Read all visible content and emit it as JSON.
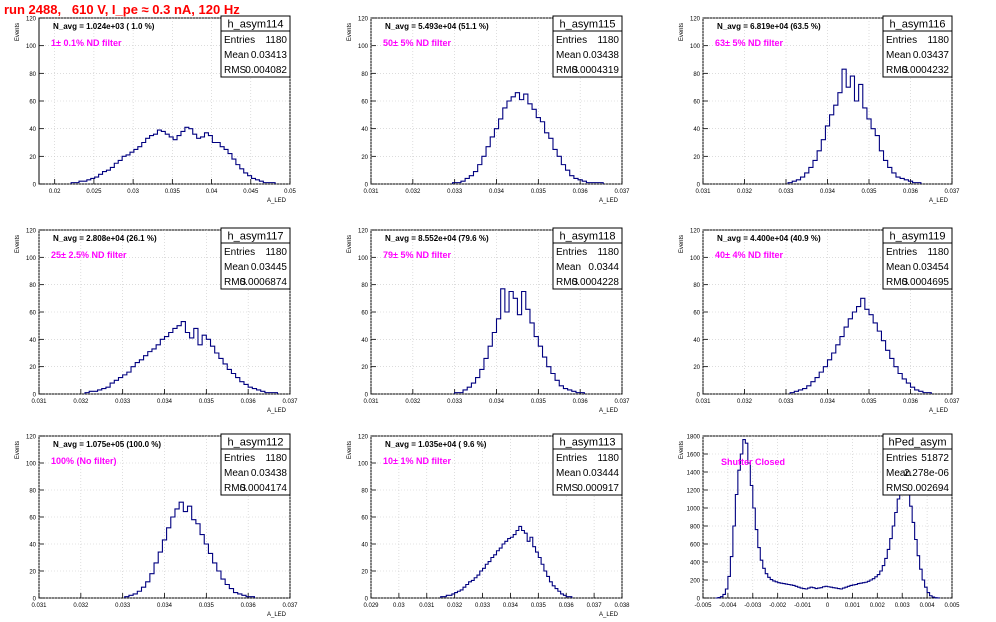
{
  "page_title": "run 2488,   610 V, I_pe ≈ 0.3 nA, 120 Hz",
  "chart_data": [
    {
      "type": "histogram",
      "name": "h_asym114",
      "annotation": "N_avg = 1.024e+03 ( 1.0 %)",
      "filter_label": "1± 0.1% ND filter",
      "stats": {
        "entries": "1180",
        "mean": "0.03413",
        "rms": "0.004082"
      },
      "ylabel": "Events",
      "xlabel": "A_LED",
      "xlim": [
        0.018,
        0.05
      ],
      "ylim": [
        0,
        120
      ],
      "xticks": [
        0.02,
        0.025,
        0.03,
        0.035,
        0.04,
        0.045,
        0.05
      ],
      "xtick_labels": [
        "0.02",
        "0.025",
        "0.03",
        "0.035",
        "0.04",
        "0.045",
        "0.05"
      ],
      "yticks": [
        0,
        20,
        40,
        60,
        80,
        100,
        120
      ],
      "bin_start": 0.0221,
      "bin_width": 0.0005,
      "counts": [
        1,
        1,
        2,
        2,
        3,
        4,
        5,
        7,
        9,
        10,
        12,
        15,
        17,
        20,
        21,
        23,
        25,
        27,
        30,
        33,
        35,
        36,
        39,
        38,
        36,
        34,
        32,
        35,
        38,
        41,
        40,
        36,
        33,
        34,
        37,
        35,
        30,
        30,
        27,
        25,
        22,
        18,
        14,
        11,
        8,
        6,
        4,
        3,
        2,
        1,
        1,
        1
      ]
    },
    {
      "type": "histogram",
      "name": "h_asym115",
      "annotation": "N_avg = 5.493e+04 (51.1 %)",
      "filter_label": "50± 5% ND filter",
      "stats": {
        "entries": "1180",
        "mean": "0.03438",
        "rms": "0.0004319"
      },
      "ylabel": "Events",
      "xlabel": "A_LED",
      "xlim": [
        0.031,
        0.037
      ],
      "ylim": [
        0,
        120
      ],
      "xticks": [
        0.031,
        0.032,
        0.033,
        0.034,
        0.035,
        0.036,
        0.037
      ],
      "xtick_labels": [
        "0.031",
        "0.032",
        "0.033",
        "0.034",
        "0.035",
        "0.036",
        "0.037"
      ],
      "yticks": [
        0,
        20,
        40,
        60,
        80,
        100,
        120
      ],
      "bin_start": 0.03295,
      "bin_width": 0.0001,
      "counts": [
        1,
        1,
        2,
        4,
        6,
        9,
        14,
        20,
        27,
        34,
        40,
        47,
        55,
        60,
        63,
        66,
        61,
        65,
        58,
        54,
        48,
        45,
        37,
        33,
        25,
        20,
        14,
        10,
        6,
        4,
        3,
        2,
        1,
        1,
        1,
        1
      ]
    },
    {
      "type": "histogram",
      "name": "h_asym116",
      "annotation": "N_avg = 6.819e+04 (63.5 %)",
      "filter_label": "63± 5% ND filter",
      "stats": {
        "entries": "1180",
        "mean": "0.03437",
        "rms": "0.0004232"
      },
      "ylabel": "Events",
      "xlabel": "A_LED",
      "xlim": [
        0.031,
        0.037
      ],
      "ylim": [
        0,
        120
      ],
      "xticks": [
        0.031,
        0.032,
        0.033,
        0.034,
        0.035,
        0.036,
        0.037
      ],
      "xtick_labels": [
        "0.031",
        "0.032",
        "0.033",
        "0.034",
        "0.035",
        "0.036",
        "0.037"
      ],
      "yticks": [
        0,
        20,
        40,
        60,
        80,
        100,
        120
      ],
      "bin_start": 0.03305,
      "bin_width": 0.0001,
      "counts": [
        1,
        2,
        3,
        5,
        8,
        12,
        17,
        24,
        32,
        42,
        50,
        57,
        66,
        83,
        70,
        78,
        60,
        72,
        55,
        47,
        40,
        35,
        24,
        17,
        12,
        8,
        5,
        4,
        3,
        2,
        1,
        1
      ]
    },
    {
      "type": "histogram",
      "name": "h_asym117",
      "annotation": "N_avg = 2.808e+04 (26.1 %)",
      "filter_label": "25± 2.5% ND filter",
      "stats": {
        "entries": "1180",
        "mean": "0.03445",
        "rms": "0.0006874"
      },
      "ylabel": "Events",
      "xlabel": "A_LED",
      "xlim": [
        0.031,
        0.037
      ],
      "ylim": [
        0,
        120
      ],
      "xticks": [
        0.031,
        0.032,
        0.033,
        0.034,
        0.035,
        0.036,
        0.037
      ],
      "xtick_labels": [
        "0.031",
        "0.032",
        "0.033",
        "0.034",
        "0.035",
        "0.036",
        "0.037"
      ],
      "yticks": [
        0,
        20,
        40,
        60,
        80,
        100,
        120
      ],
      "bin_start": 0.0321,
      "bin_width": 0.0001,
      "counts": [
        1,
        2,
        2,
        3,
        4,
        5,
        8,
        10,
        12,
        14,
        16,
        20,
        23,
        25,
        28,
        31,
        33,
        36,
        40,
        42,
        45,
        48,
        50,
        53,
        45,
        41,
        48,
        36,
        43,
        40,
        35,
        30,
        26,
        22,
        18,
        15,
        12,
        9,
        7,
        5,
        4,
        3,
        2,
        1,
        1,
        1
      ]
    },
    {
      "type": "histogram",
      "name": "h_asym118",
      "annotation": "N_avg = 8.552e+04 (79.6 %)",
      "filter_label": "79± 5% ND filter",
      "stats": {
        "entries": "1180",
        "mean": "0.0344",
        "rms": "0.0004228"
      },
      "ylabel": "Events",
      "xlabel": "A_LED",
      "xlim": [
        0.031,
        0.037
      ],
      "ylim": [
        0,
        120
      ],
      "xticks": [
        0.031,
        0.032,
        0.033,
        0.034,
        0.035,
        0.036,
        0.037
      ],
      "xtick_labels": [
        "0.031",
        "0.032",
        "0.033",
        "0.034",
        "0.035",
        "0.036",
        "0.037"
      ],
      "yticks": [
        0,
        20,
        40,
        60,
        80,
        100,
        120
      ],
      "bin_start": 0.033,
      "bin_width": 0.0001,
      "counts": [
        1,
        1,
        3,
        5,
        8,
        12,
        18,
        26,
        35,
        45,
        55,
        77,
        60,
        75,
        70,
        58,
        75,
        62,
        52,
        42,
        35,
        27,
        20,
        15,
        10,
        6,
        4,
        3,
        2,
        1,
        1
      ]
    },
    {
      "type": "histogram",
      "name": "h_asym119",
      "annotation": "N_avg = 4.400e+04 (40.9 %)",
      "filter_label": "40± 4% ND filter",
      "stats": {
        "entries": "1180",
        "mean": "0.03454",
        "rms": "0.0004695"
      },
      "ylabel": "Events",
      "xlabel": "A_LED",
      "xlim": [
        0.031,
        0.037
      ],
      "ylim": [
        0,
        120
      ],
      "xticks": [
        0.031,
        0.032,
        0.033,
        0.034,
        0.035,
        0.036,
        0.037
      ],
      "xtick_labels": [
        "0.031",
        "0.032",
        "0.033",
        "0.034",
        "0.035",
        "0.036",
        "0.037"
      ],
      "yticks": [
        0,
        20,
        40,
        60,
        80,
        100,
        120
      ],
      "bin_start": 0.0331,
      "bin_width": 0.0001,
      "counts": [
        1,
        2,
        3,
        4,
        6,
        9,
        12,
        16,
        20,
        25,
        30,
        36,
        42,
        49,
        55,
        60,
        64,
        70,
        62,
        58,
        52,
        46,
        39,
        32,
        26,
        20,
        15,
        11,
        8,
        5,
        3,
        2,
        1,
        1
      ]
    },
    {
      "type": "histogram",
      "name": "h_asym112",
      "annotation": "N_avg = 1.075e+05 (100.0 %)",
      "filter_label": "100% (No filter)",
      "stats": {
        "entries": "1180",
        "mean": "0.03438",
        "rms": "0.0004174"
      },
      "ylabel": "Events",
      "xlabel": "A_LED",
      "xlim": [
        0.031,
        0.037
      ],
      "ylim": [
        0,
        120
      ],
      "xticks": [
        0.031,
        0.032,
        0.033,
        0.034,
        0.035,
        0.036,
        0.037
      ],
      "xtick_labels": [
        "0.031",
        "0.032",
        "0.033",
        "0.034",
        "0.035",
        "0.036",
        "0.037"
      ],
      "yticks": [
        0,
        20,
        40,
        60,
        80,
        100,
        120
      ],
      "bin_start": 0.03305,
      "bin_width": 0.0001,
      "counts": [
        1,
        2,
        3,
        5,
        8,
        12,
        18,
        26,
        34,
        43,
        52,
        60,
        66,
        71,
        64,
        68,
        58,
        55,
        47,
        40,
        33,
        26,
        20,
        14,
        10,
        7,
        4,
        3,
        2,
        1,
        1
      ]
    },
    {
      "type": "histogram",
      "name": "h_asym113",
      "annotation": "N_avg = 1.035e+04 ( 9.6 %)",
      "filter_label": "10± 1% ND filter",
      "stats": {
        "entries": "1180",
        "mean": "0.03444",
        "rms": "0.000917"
      },
      "ylabel": "Events",
      "xlabel": "A_LED",
      "xlim": [
        0.029,
        0.038
      ],
      "ylim": [
        0,
        120
      ],
      "xticks": [
        0.029,
        0.03,
        0.031,
        0.032,
        0.033,
        0.034,
        0.035,
        0.036,
        0.037,
        0.038
      ],
      "xtick_labels": [
        "0.029",
        "0.03",
        "0.031",
        "0.032",
        "0.033",
        "0.034",
        "0.035",
        "0.036",
        "0.037",
        "0.038"
      ],
      "yticks": [
        0,
        20,
        40,
        60,
        80,
        100,
        120
      ],
      "bin_start": 0.0315,
      "bin_width": 0.0001,
      "counts": [
        1,
        1,
        2,
        2,
        3,
        4,
        5,
        6,
        8,
        10,
        12,
        13,
        15,
        17,
        20,
        22,
        25,
        27,
        30,
        32,
        35,
        37,
        40,
        42,
        44,
        45,
        47,
        50,
        53,
        50,
        48,
        42,
        45,
        38,
        34,
        30,
        25,
        20,
        16,
        12,
        9,
        7,
        5,
        3,
        2,
        1,
        1
      ]
    },
    {
      "type": "histogram",
      "name": "hPed_asym",
      "annotation": "",
      "filter_label": "Shutter Closed",
      "stats": {
        "entries": "51872",
        "mean": "2.278e-06",
        "rms": "0.002694"
      },
      "ylabel": "Events",
      "xlabel": "",
      "xlim": [
        -0.005,
        0.005
      ],
      "ylim": [
        0,
        1800
      ],
      "xticks": [
        -0.005,
        -0.004,
        -0.003,
        -0.002,
        -0.001,
        0,
        0.001,
        0.002,
        0.003,
        0.004,
        0.005
      ],
      "xtick_labels": [
        "-0.005",
        "-0.004",
        "-0.003",
        "-0.002",
        "-0.001",
        "0",
        "0.001",
        "0.002",
        "0.003",
        "0.004",
        "0.005"
      ],
      "yticks": [
        0,
        200,
        400,
        600,
        800,
        1000,
        1200,
        1400,
        1600,
        1800
      ],
      "bin_start": -0.0045,
      "bin_width": 0.0001,
      "counts": [
        0,
        5,
        15,
        40,
        100,
        240,
        460,
        800,
        1150,
        1420,
        1600,
        1760,
        1720,
        1500,
        1250,
        1000,
        760,
        560,
        420,
        330,
        270,
        230,
        205,
        190,
        180,
        170,
        165,
        160,
        155,
        150,
        145,
        140,
        130,
        120,
        110,
        105,
        100,
        110,
        120,
        115,
        105,
        110,
        115,
        125,
        130,
        125,
        120,
        115,
        110,
        105,
        100,
        110,
        120,
        130,
        140,
        145,
        150,
        160,
        165,
        170,
        175,
        185,
        200,
        215,
        235,
        260,
        300,
        360,
        440,
        540,
        660,
        800,
        950,
        1100,
        1240,
        1350,
        1300,
        1180,
        1020,
        840,
        650,
        470,
        320,
        200,
        120,
        60,
        25,
        10,
        3,
        1
      ]
    }
  ]
}
